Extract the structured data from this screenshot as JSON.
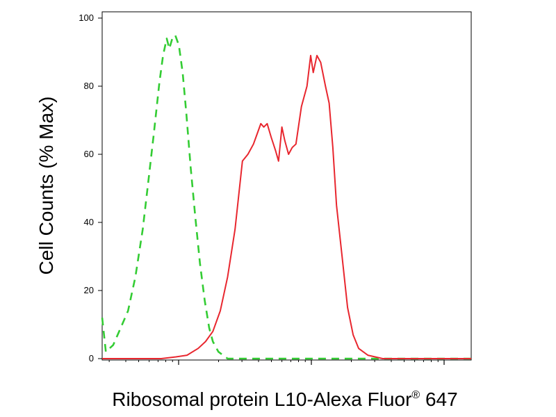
{
  "chart_data": {
    "type": "line",
    "title": "",
    "ylabel": "Cell Counts (% Max)",
    "xlabel_main": "Ribosomal protein L10-Alexa Fluor",
    "xlabel_sup": "®",
    "xlabel_tail": " 647",
    "ylim": [
      0,
      100
    ],
    "xlim": [
      0,
      1
    ],
    "x_scale": "log",
    "yticks": [
      0,
      20,
      40,
      60,
      80,
      100
    ],
    "ytick_labels": [
      "0",
      "20",
      "40",
      "60",
      "80",
      "100"
    ],
    "grid": false,
    "legend": "none",
    "series": [
      {
        "color": "#33cc33",
        "style": "dashed",
        "points": [
          [
            0.0,
            12
          ],
          [
            0.01,
            2
          ],
          [
            0.03,
            4
          ],
          [
            0.05,
            9
          ],
          [
            0.07,
            14
          ],
          [
            0.09,
            24
          ],
          [
            0.11,
            38
          ],
          [
            0.125,
            52
          ],
          [
            0.14,
            66
          ],
          [
            0.155,
            81
          ],
          [
            0.165,
            89
          ],
          [
            0.175,
            94
          ],
          [
            0.182,
            91
          ],
          [
            0.19,
            94
          ],
          [
            0.198,
            95
          ],
          [
            0.208,
            92
          ],
          [
            0.218,
            84
          ],
          [
            0.228,
            72
          ],
          [
            0.24,
            56
          ],
          [
            0.252,
            42
          ],
          [
            0.265,
            28
          ],
          [
            0.278,
            17
          ],
          [
            0.29,
            9
          ],
          [
            0.3,
            5
          ],
          [
            0.315,
            2
          ],
          [
            0.34,
            0
          ],
          [
            0.7,
            0
          ],
          [
            1.0,
            0
          ]
        ]
      },
      {
        "color": "#e8262e",
        "style": "solid",
        "points": [
          [
            0.0,
            0
          ],
          [
            0.16,
            0
          ],
          [
            0.2,
            0.5
          ],
          [
            0.23,
            1
          ],
          [
            0.26,
            3
          ],
          [
            0.28,
            5
          ],
          [
            0.3,
            8
          ],
          [
            0.32,
            14
          ],
          [
            0.34,
            24
          ],
          [
            0.36,
            38
          ],
          [
            0.37,
            48
          ],
          [
            0.38,
            58
          ],
          [
            0.395,
            60
          ],
          [
            0.41,
            63
          ],
          [
            0.42,
            66
          ],
          [
            0.43,
            69
          ],
          [
            0.438,
            68
          ],
          [
            0.447,
            69
          ],
          [
            0.458,
            65
          ],
          [
            0.47,
            61
          ],
          [
            0.478,
            58
          ],
          [
            0.487,
            68
          ],
          [
            0.495,
            64
          ],
          [
            0.505,
            60
          ],
          [
            0.515,
            62
          ],
          [
            0.525,
            63
          ],
          [
            0.54,
            74
          ],
          [
            0.555,
            80
          ],
          [
            0.565,
            89
          ],
          [
            0.572,
            84
          ],
          [
            0.582,
            89
          ],
          [
            0.592,
            87
          ],
          [
            0.605,
            80
          ],
          [
            0.615,
            75
          ],
          [
            0.625,
            62
          ],
          [
            0.635,
            45
          ],
          [
            0.65,
            30
          ],
          [
            0.665,
            15
          ],
          [
            0.68,
            7
          ],
          [
            0.695,
            3
          ],
          [
            0.72,
            1
          ],
          [
            0.76,
            0
          ],
          [
            1.0,
            0
          ]
        ]
      }
    ]
  }
}
